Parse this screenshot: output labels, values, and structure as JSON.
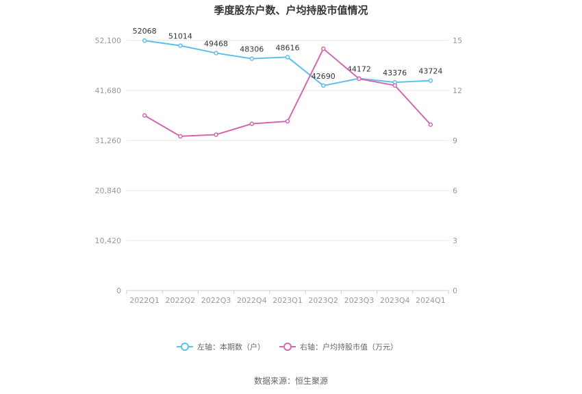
{
  "chart_data": {
    "type": "line",
    "title": "季度股东户数、户均持股市值情况",
    "categories": [
      "2022Q1",
      "2022Q2",
      "2022Q3",
      "2022Q4",
      "2023Q1",
      "2023Q2",
      "2023Q3",
      "2023Q4",
      "2024Q1"
    ],
    "left_axis": {
      "ticks": [
        "0",
        "10,420",
        "20,840",
        "31,260",
        "41,680",
        "52,100"
      ],
      "ylim": [
        0,
        52100
      ]
    },
    "right_axis": {
      "ticks": [
        "0",
        "3",
        "6",
        "9",
        "12",
        "15"
      ],
      "ylim": [
        0,
        15
      ]
    },
    "series": [
      {
        "name": "左轴：本期数（户）",
        "axis": "left",
        "color": "#5BC0EB",
        "values": [
          52068,
          51014,
          49468,
          48306,
          48616,
          42690,
          44172,
          43376,
          43724
        ],
        "labels": [
          "52068",
          "51014",
          "49468",
          "48306",
          "48616",
          "42690",
          "44172",
          "43376",
          "43724"
        ]
      },
      {
        "name": "右轴：户均持股市值（万元）",
        "axis": "right",
        "color": "#D466B0",
        "values": [
          10.5,
          9.25,
          9.35,
          10.0,
          10.15,
          14.5,
          12.7,
          12.3,
          9.95
        ]
      }
    ],
    "grid": true,
    "legend_position": "bottom-center"
  },
  "source": "数据来源：恒生聚源"
}
